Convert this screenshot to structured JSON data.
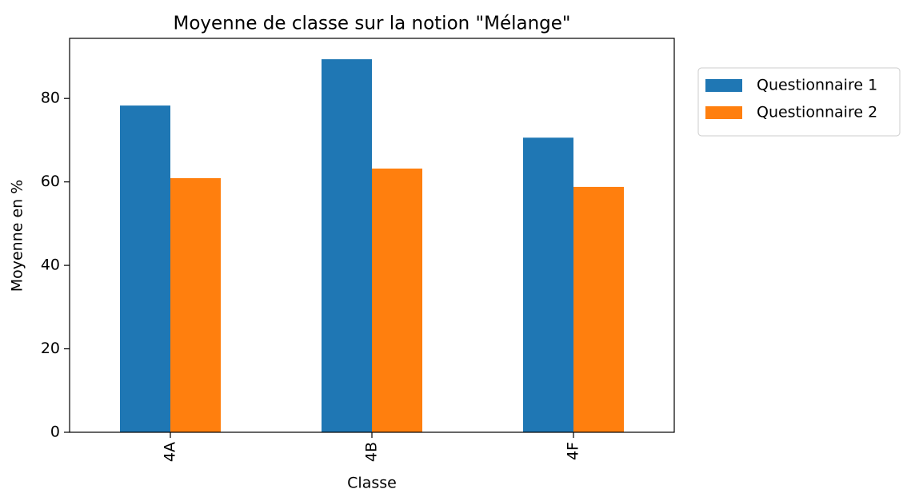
{
  "chart_data": {
    "type": "bar",
    "title": "Moyenne de classe sur la notion \"Mélange\"",
    "x_label": "Classe",
    "y_label": "Moyenne en %",
    "categories": [
      "4A",
      "4B",
      "4F"
    ],
    "series": [
      {
        "name": "Questionnaire 1",
        "color": "#1f77b4",
        "values": [
          78.3,
          89.4,
          70.6
        ]
      },
      {
        "name": "Questionnaire 2",
        "color": "#ff7f0e",
        "values": [
          60.9,
          63.2,
          58.8
        ]
      }
    ],
    "ylim": [
      0,
      94.4
    ],
    "yticks": [
      0,
      20,
      40,
      60,
      80
    ],
    "grid": false,
    "legend": "outside upper right"
  }
}
